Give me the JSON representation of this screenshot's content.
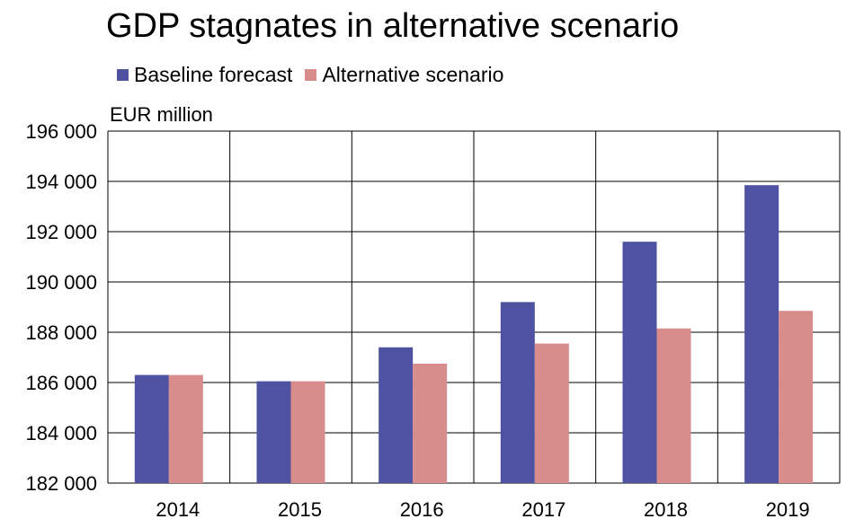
{
  "title": "GDP stagnates in alternative scenario",
  "unit_label": "EUR million",
  "legend": [
    {
      "label": "Baseline forecast",
      "color": "#4f52a0"
    },
    {
      "label": "Alternative scenario",
      "color": "#d98c8c"
    }
  ],
  "chart_data": {
    "type": "bar",
    "title": "GDP stagnates in alternative scenario",
    "xlabel": "",
    "ylabel": "EUR million",
    "categories": [
      "2014",
      "2015",
      "2016",
      "2017",
      "2018",
      "2019"
    ],
    "series": [
      {
        "name": "Baseline forecast",
        "color": "#4f52a0",
        "values": [
          186300,
          186050,
          187400,
          189200,
          191600,
          193850
        ]
      },
      {
        "name": "Alternative scenario",
        "color": "#d98c8c",
        "values": [
          186300,
          186050,
          186750,
          187550,
          188150,
          188850
        ]
      }
    ],
    "ylim": [
      182000,
      196000
    ],
    "yticks": [
      182000,
      184000,
      186000,
      188000,
      190000,
      192000,
      194000,
      196000
    ],
    "ytick_labels": [
      "182 000",
      "184 000",
      "186 000",
      "188 000",
      "190 000",
      "192 000",
      "194 000",
      "196 000"
    ],
    "grid": true,
    "legend_position": "top-left"
  }
}
